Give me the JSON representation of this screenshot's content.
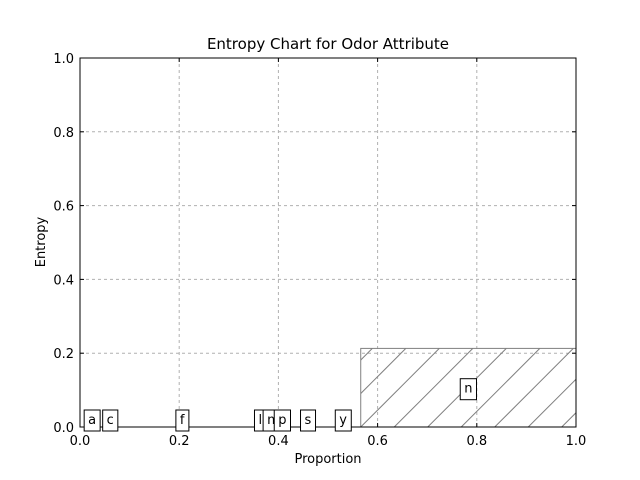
{
  "chart_data": {
    "type": "bar",
    "title": "Entropy Chart for Odor Attribute",
    "xlabel": "Proportion",
    "ylabel": "Entropy",
    "xlim": [
      0,
      1
    ],
    "ylim": [
      0,
      1
    ],
    "xticks": [
      "0.0",
      "0.2",
      "0.4",
      "0.6",
      "0.8",
      "1.0"
    ],
    "yticks": [
      "0.0",
      "0.2",
      "0.4",
      "0.6",
      "0.8",
      "1.0"
    ],
    "grid": true,
    "segments": [
      {
        "label": "a",
        "start": 0.0,
        "end": 0.049,
        "entropy": 0.0
      },
      {
        "label": "c",
        "start": 0.049,
        "end": 0.073,
        "entropy": 0.0
      },
      {
        "label": "f",
        "start": 0.073,
        "end": 0.339,
        "entropy": 0.0
      },
      {
        "label": "l",
        "start": 0.339,
        "end": 0.388,
        "entropy": 0.0
      },
      {
        "label": "m",
        "start": 0.388,
        "end": 0.392,
        "entropy": 0.0
      },
      {
        "label": "p",
        "start": 0.392,
        "end": 0.424,
        "entropy": 0.0
      },
      {
        "label": "s",
        "start": 0.424,
        "end": 0.495,
        "entropy": 0.0
      },
      {
        "label": "y",
        "start": 0.495,
        "end": 0.566,
        "entropy": 0.0
      },
      {
        "label": "n",
        "start": 0.566,
        "end": 1.0,
        "entropy": 0.213
      }
    ]
  }
}
